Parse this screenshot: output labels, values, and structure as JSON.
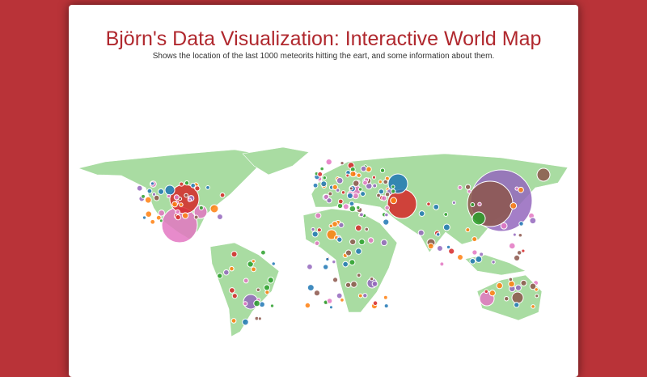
{
  "header": {
    "title": "Björn's Data Visualization: Interactive World Map",
    "subtitle": "Shows the location of the last 1000 meteorits hitting the eart, and some information about them."
  }
}
